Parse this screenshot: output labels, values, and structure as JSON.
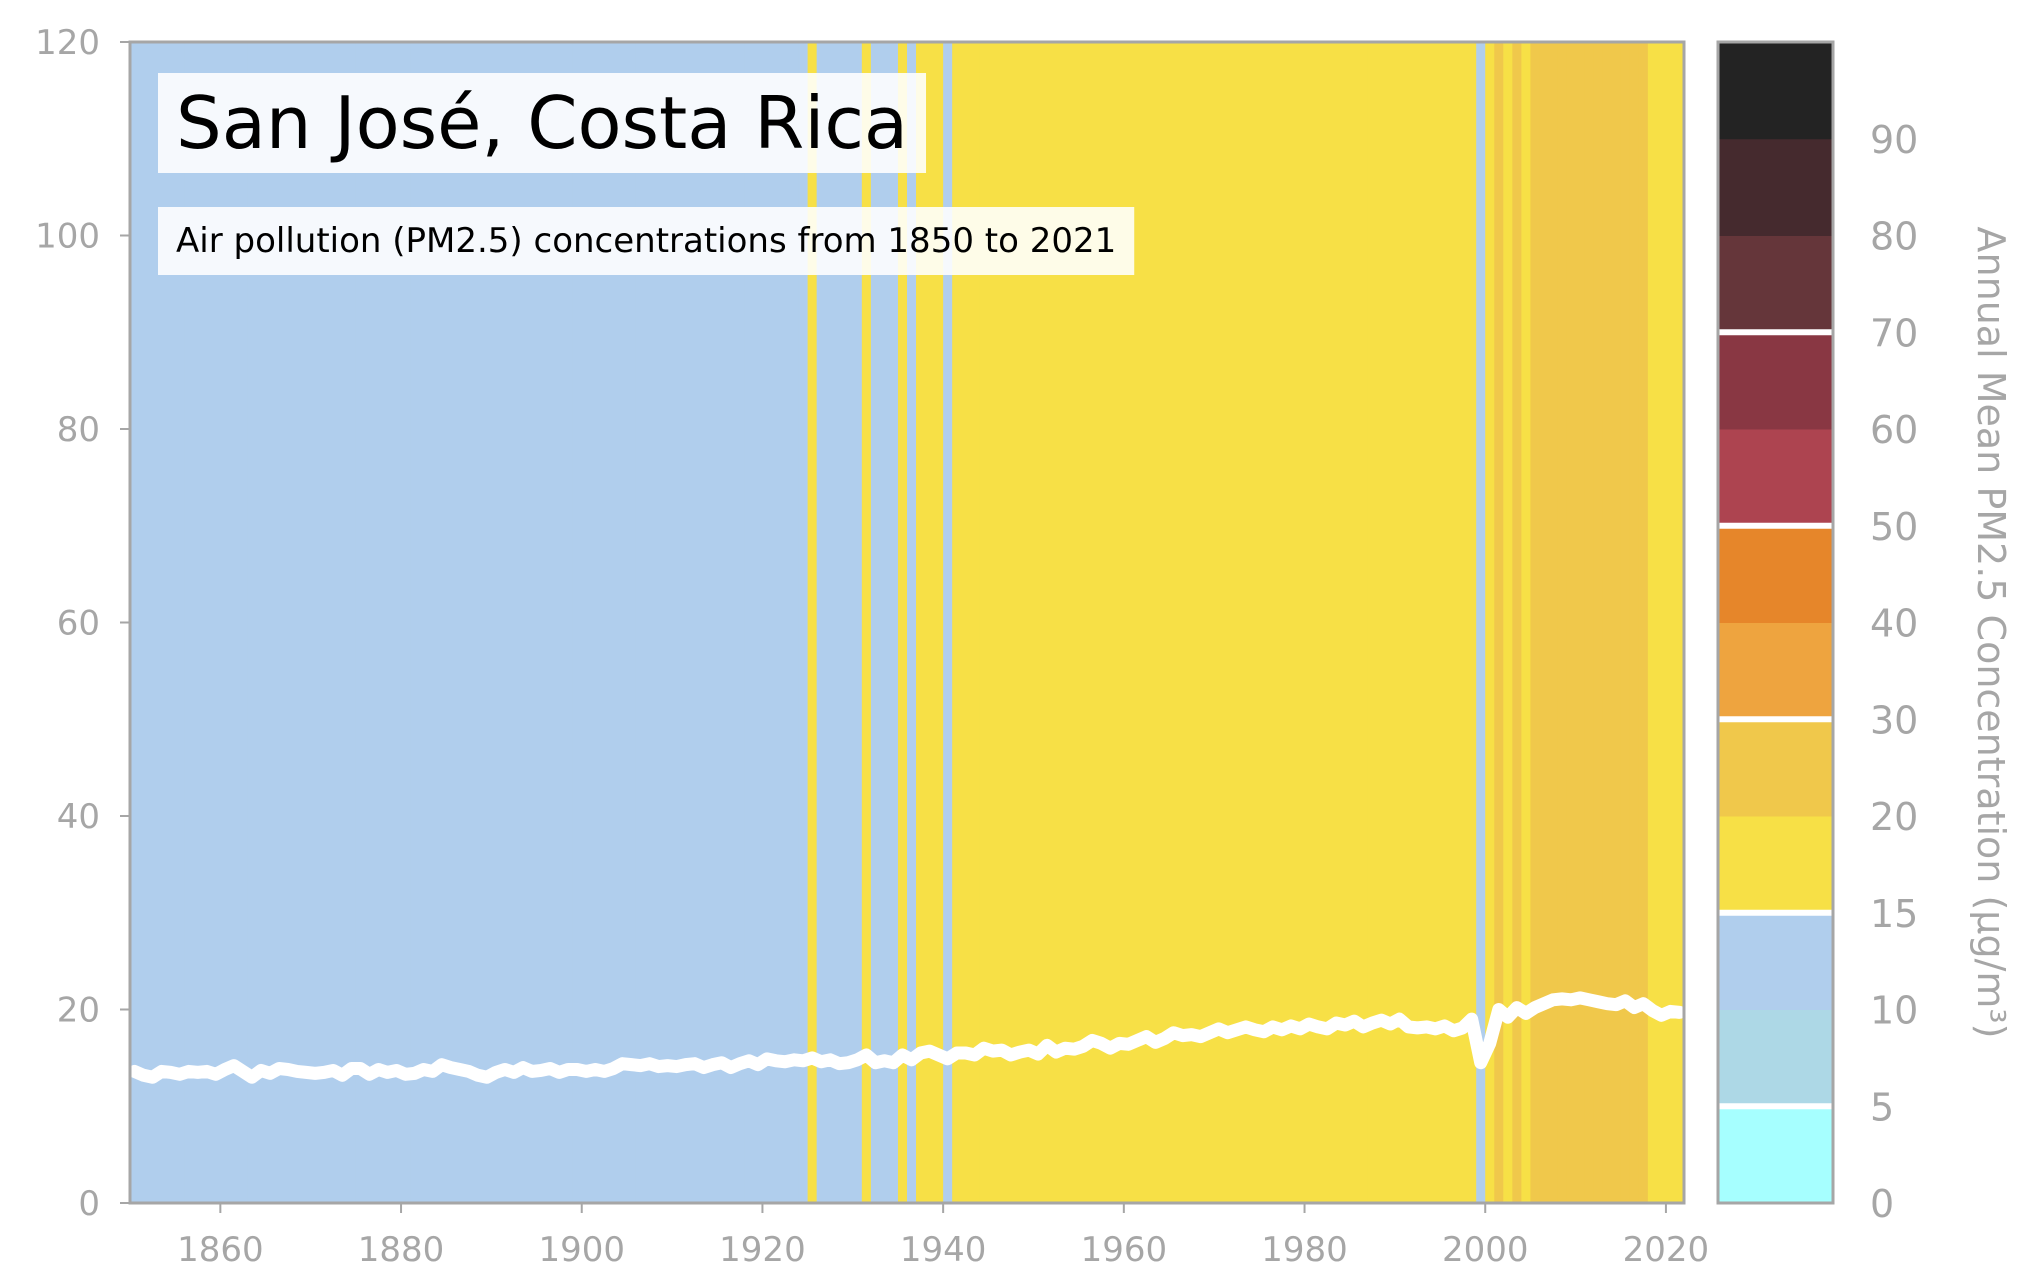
{
  "chart_data": {
    "type": "area",
    "title": "San José, Costa Rica",
    "subtitle": "Air pollution (PM2.5) concentrations from 1850 to 2021",
    "xlim": [
      1850,
      2022
    ],
    "ylim": [
      0,
      120
    ],
    "x_ticks": [
      1860,
      1880,
      1900,
      1920,
      1940,
      1960,
      1980,
      2000,
      2020
    ],
    "y_ticks": [
      0,
      20,
      40,
      60,
      80,
      100,
      120
    ],
    "grid": false,
    "line_color": "#ffffff",
    "colorbar": {
      "label": "Annual Mean PM2.5 Concentration (μg/m³)",
      "tick_labels": [
        "0",
        "5",
        "10",
        "15",
        "20",
        "30",
        "40",
        "50",
        "60",
        "70",
        "80",
        "90"
      ],
      "bins": [
        {
          "from": 0,
          "to": 5,
          "color": "#a6ffff"
        },
        {
          "from": 5,
          "to": 10,
          "color": "#add8e6"
        },
        {
          "from": 10,
          "to": 15,
          "color": "#b0ceed"
        },
        {
          "from": 15,
          "to": 20,
          "color": "#f7e046"
        },
        {
          "from": 20,
          "to": 30,
          "color": "#f0c84b"
        },
        {
          "from": 30,
          "to": 40,
          "color": "#eea43f"
        },
        {
          "from": 40,
          "to": 50,
          "color": "#e6862a"
        },
        {
          "from": 50,
          "to": 60,
          "color": "#ad4450"
        },
        {
          "from": 60,
          "to": 70,
          "color": "#893743"
        },
        {
          "from": 70,
          "to": 80,
          "color": "#65363a"
        },
        {
          "from": 80,
          "to": 90,
          "color": "#452a2e"
        },
        {
          "from": 90,
          "to": 100,
          "color": "#232323"
        }
      ],
      "white_lines_at": [
        5,
        15,
        30,
        50,
        70
      ]
    },
    "series": [
      {
        "x": [
          1850,
          1851,
          1852,
          1853,
          1854,
          1855,
          1856,
          1857,
          1858,
          1859,
          1860,
          1861,
          1862,
          1863,
          1864,
          1865,
          1866,
          1867,
          1868,
          1869,
          1870,
          1871,
          1872,
          1873,
          1874,
          1875,
          1876,
          1877,
          1878,
          1879,
          1880,
          1881,
          1882,
          1883,
          1884,
          1885,
          1886,
          1887,
          1888,
          1889,
          1890,
          1891,
          1892,
          1893,
          1894,
          1895,
          1896,
          1897,
          1898,
          1899,
          1900,
          1901,
          1902,
          1903,
          1904,
          1905,
          1906,
          1907,
          1908,
          1909,
          1910,
          1911,
          1912,
          1913,
          1914,
          1915,
          1916,
          1917,
          1918,
          1919,
          1920,
          1921,
          1922,
          1923,
          1924,
          1925,
          1926,
          1927,
          1928,
          1929,
          1930,
          1931,
          1932,
          1933,
          1934,
          1935,
          1936,
          1937,
          1938,
          1939,
          1940,
          1941,
          1942,
          1943,
          1944,
          1945,
          1946,
          1947,
          1948,
          1949,
          1950,
          1951,
          1952,
          1953,
          1954,
          1955,
          1956,
          1957,
          1958,
          1959,
          1960,
          1961,
          1962,
          1963,
          1964,
          1965,
          1966,
          1967,
          1968,
          1969,
          1970,
          1971,
          1972,
          1973,
          1974,
          1975,
          1976,
          1977,
          1978,
          1979,
          1980,
          1981,
          1982,
          1983,
          1984,
          1985,
          1986,
          1987,
          1988,
          1989,
          1990,
          1991,
          1992,
          1993,
          1994,
          1995,
          1996,
          1997,
          1998,
          1999,
          2000,
          2001,
          2002,
          2003,
          2004,
          2005,
          2006,
          2007,
          2008,
          2009,
          2010,
          2011,
          2012,
          2013,
          2014,
          2015,
          2016,
          2017,
          2018,
          2019,
          2020,
          2021
        ],
        "values": [
          13.6,
          13.2,
          13.0,
          13.6,
          13.5,
          13.3,
          13.6,
          13.5,
          13.6,
          13.3,
          13.8,
          14.2,
          13.6,
          13.0,
          13.7,
          13.4,
          13.9,
          13.8,
          13.6,
          13.5,
          13.4,
          13.5,
          13.7,
          13.2,
          13.9,
          13.9,
          13.3,
          13.8,
          13.5,
          13.7,
          13.3,
          13.4,
          13.8,
          13.6,
          14.3,
          14.0,
          13.8,
          13.6,
          13.2,
          13.0,
          13.5,
          13.8,
          13.5,
          14.0,
          13.6,
          13.7,
          13.9,
          13.5,
          13.8,
          13.8,
          13.6,
          13.8,
          13.6,
          13.9,
          14.4,
          14.3,
          14.2,
          14.4,
          14.1,
          14.2,
          14.1,
          14.3,
          14.4,
          14.0,
          14.3,
          14.5,
          14.0,
          14.4,
          14.7,
          14.3,
          14.9,
          14.7,
          14.6,
          14.8,
          14.7,
          15.0,
          14.6,
          14.8,
          14.4,
          14.5,
          14.8,
          15.3,
          14.5,
          14.7,
          14.5,
          15.3,
          14.8,
          15.5,
          15.7,
          15.3,
          14.9,
          15.5,
          15.5,
          15.3,
          16.0,
          15.7,
          15.8,
          15.3,
          15.6,
          15.8,
          15.4,
          16.3,
          15.6,
          16.0,
          15.9,
          16.2,
          16.8,
          16.5,
          16.0,
          16.5,
          16.4,
          16.8,
          17.2,
          16.6,
          17.0,
          17.6,
          17.3,
          17.4,
          17.2,
          17.6,
          18.0,
          17.6,
          17.9,
          18.2,
          17.9,
          17.7,
          18.2,
          17.9,
          18.3,
          18.0,
          18.5,
          18.2,
          18.0,
          18.6,
          18.4,
          18.8,
          18.2,
          18.6,
          18.9,
          18.5,
          19.0,
          18.2,
          18.1,
          18.2,
          18.0,
          18.3,
          17.8,
          18.1,
          19.0,
          14.5,
          16.5,
          20.0,
          19.2,
          20.2,
          19.6,
          20.2,
          20.6,
          21.0,
          21.1,
          21.0,
          21.2,
          21.0,
          20.8,
          20.6,
          20.5,
          20.9,
          20.2,
          20.6,
          19.9,
          19.4,
          19.8,
          19.7
        ]
      }
    ]
  }
}
